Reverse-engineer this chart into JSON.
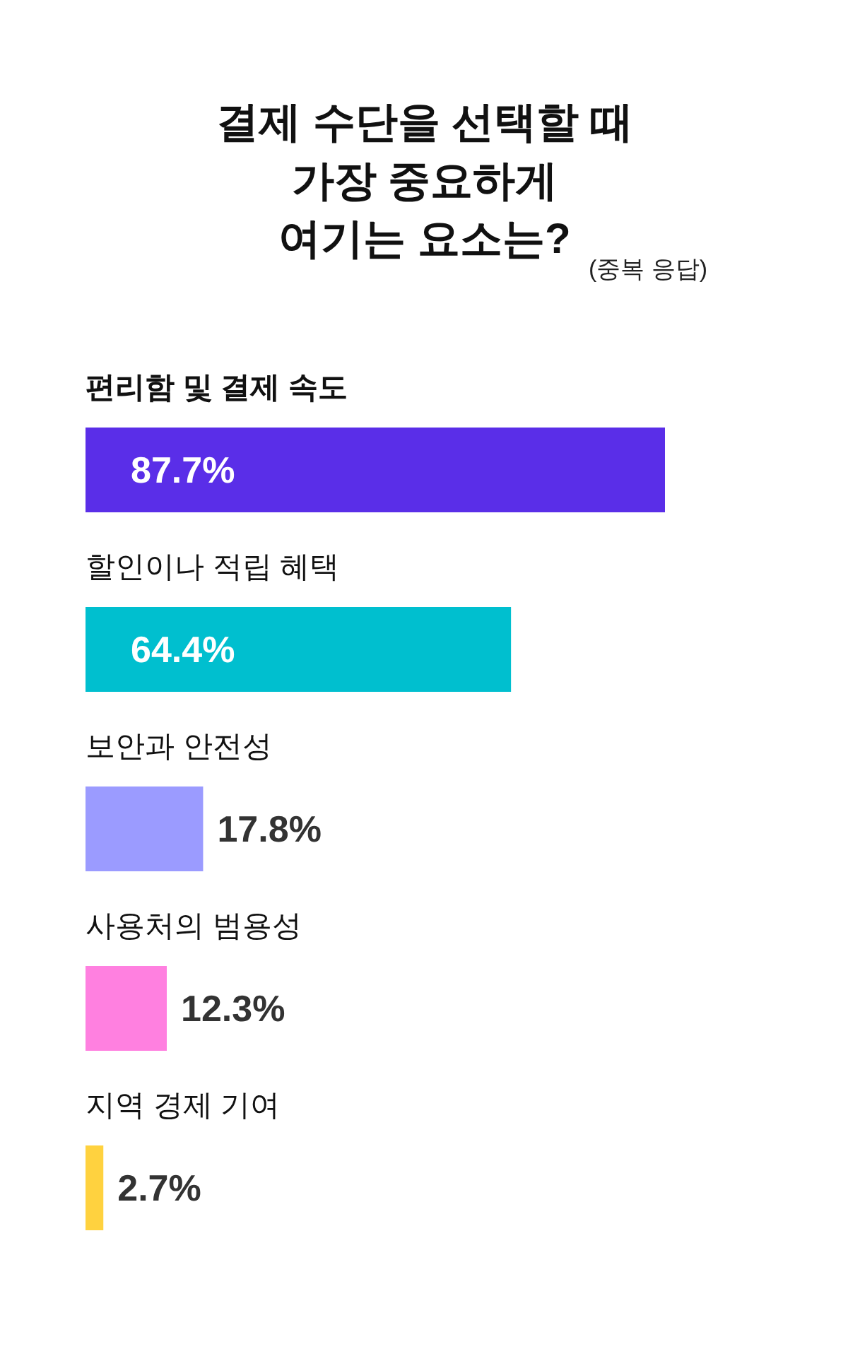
{
  "chart_data": {
    "type": "bar",
    "orientation": "horizontal",
    "title": "결제 수단을 선택할 때\n가장 중요하게\n여기는 요소는?",
    "subtitle": "(중복 응답)",
    "categories": [
      "편리함 및 결제 속도",
      "할인이나 적립 혜택",
      "보안과 안전성",
      "사용처의 범용성",
      "지역 경제 기여"
    ],
    "values": [
      87.7,
      64.4,
      17.8,
      12.3,
      2.7
    ],
    "colors": [
      "#5a2ee8",
      "#00bfcf",
      "#9b9bff",
      "#ff80e0",
      "#ffd23f"
    ],
    "value_labels": [
      "87.7%",
      "64.4%",
      "17.8%",
      "12.3%",
      "2.7%"
    ],
    "grid": false
  }
}
